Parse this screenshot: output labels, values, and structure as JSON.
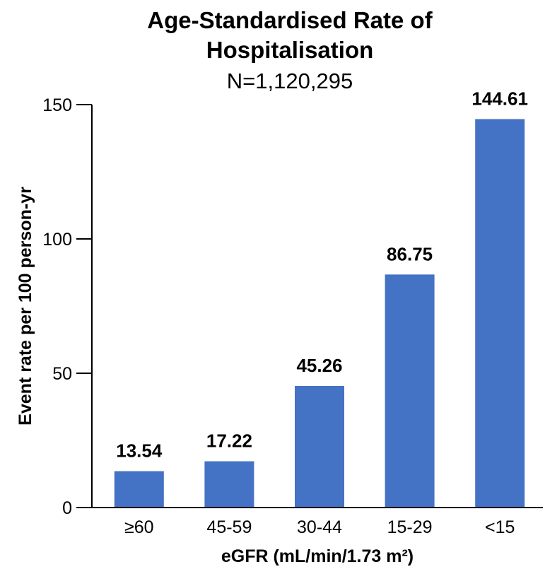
{
  "chart_data": {
    "type": "bar",
    "title_lines": [
      "Age-Standardised Rate of",
      "Hospitalisation"
    ],
    "subtitle": "N=1,120,295",
    "xlabel": "eGFR (mL/min/1.73 m²)",
    "ylabel": "Event rate per 100 person-yr",
    "categories": [
      "≥60",
      "45-59",
      "30-44",
      "15-29",
      "<15"
    ],
    "values": [
      13.54,
      17.22,
      45.26,
      86.75,
      144.61
    ],
    "data_labels": [
      "13.54",
      "17.22",
      "45.26",
      "86.75",
      "144.61"
    ],
    "ylim": [
      0,
      150
    ],
    "yticks": [
      0,
      50,
      100,
      150
    ],
    "ytick_labels": [
      "0",
      "50",
      "100",
      "150"
    ],
    "bar_color": "#4472C4",
    "grid": false,
    "legend": "none"
  }
}
